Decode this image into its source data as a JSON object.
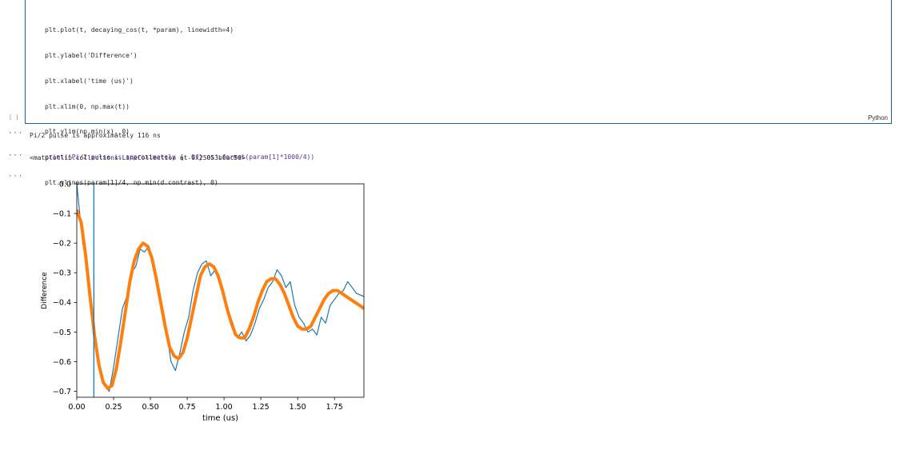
{
  "input_cell": {
    "code_lines": [
      "plt.plot(t, decaying_cos(t, *param), linewidth=4)",
      "plt.ylabel('Difference')",
      "plt.xlabel('time (us)')",
      "plt.xlim(0, np.max(t))",
      "plt.ylim(np.min(x), 0)",
      "print('Pi/2 pulse is approximately {:.0f} ns'.format(param[1]*1000/4))",
      "plt.vlines(param[1]/4, np.min(d.contrast), 0)"
    ],
    "language": "Python",
    "bracket": "[ ]"
  },
  "outputs": {
    "dots": "···",
    "stdout": "Pi/2 pulse is approximately 116 ns",
    "repr": "<matplotlib.collections.LineCollection at 0x25053b0ac50>"
  },
  "chart_data": {
    "type": "line",
    "xlabel": "time (us)",
    "ylabel": "Difference",
    "xlim": [
      0,
      1.95
    ],
    "ylim": [
      -0.72,
      0
    ],
    "xticks": [
      "0.00",
      "0.25",
      "0.50",
      "0.75",
      "1.00",
      "1.25",
      "1.50",
      "1.75"
    ],
    "yticks": [
      "0.0",
      "−0.1",
      "−0.2",
      "−0.3",
      "−0.4",
      "−0.5",
      "−0.6",
      "−0.7"
    ],
    "vline_x": 0.116,
    "series": [
      {
        "color": "#1f77b4",
        "x": [
          0.0,
          0.04,
          0.07,
          0.1,
          0.13,
          0.16,
          0.19,
          0.22,
          0.25,
          0.28,
          0.31,
          0.34,
          0.37,
          0.4,
          0.43,
          0.46,
          0.49,
          0.52,
          0.55,
          0.58,
          0.61,
          0.64,
          0.67,
          0.7,
          0.73,
          0.76,
          0.79,
          0.82,
          0.85,
          0.88,
          0.91,
          0.94,
          0.97,
          1.0,
          1.03,
          1.06,
          1.09,
          1.12,
          1.15,
          1.18,
          1.21,
          1.24,
          1.27,
          1.3,
          1.33,
          1.36,
          1.39,
          1.42,
          1.45,
          1.48,
          1.51,
          1.54,
          1.57,
          1.6,
          1.63,
          1.66,
          1.69,
          1.72,
          1.75,
          1.78,
          1.81,
          1.84,
          1.87,
          1.9,
          1.95
        ],
        "values": [
          0.0,
          -0.2,
          -0.28,
          -0.42,
          -0.55,
          -0.62,
          -0.68,
          -0.7,
          -0.62,
          -0.52,
          -0.42,
          -0.38,
          -0.3,
          -0.28,
          -0.22,
          -0.23,
          -0.21,
          -0.26,
          -0.36,
          -0.44,
          -0.5,
          -0.6,
          -0.63,
          -0.57,
          -0.5,
          -0.45,
          -0.36,
          -0.3,
          -0.27,
          -0.26,
          -0.31,
          -0.29,
          -0.34,
          -0.39,
          -0.43,
          -0.47,
          -0.52,
          -0.5,
          -0.53,
          -0.51,
          -0.47,
          -0.42,
          -0.39,
          -0.35,
          -0.33,
          -0.29,
          -0.31,
          -0.35,
          -0.33,
          -0.41,
          -0.45,
          -0.47,
          -0.5,
          -0.49,
          -0.51,
          -0.45,
          -0.47,
          -0.41,
          -0.39,
          -0.37,
          -0.36,
          -0.33,
          -0.35,
          -0.37,
          -0.38
        ]
      },
      {
        "color": "#ff7f0e",
        "x": [
          0.0,
          0.03,
          0.06,
          0.09,
          0.12,
          0.15,
          0.18,
          0.21,
          0.24,
          0.27,
          0.3,
          0.33,
          0.36,
          0.39,
          0.42,
          0.45,
          0.48,
          0.51,
          0.54,
          0.57,
          0.6,
          0.63,
          0.66,
          0.69,
          0.72,
          0.75,
          0.78,
          0.81,
          0.84,
          0.87,
          0.9,
          0.93,
          0.96,
          0.99,
          1.02,
          1.05,
          1.08,
          1.11,
          1.14,
          1.17,
          1.2,
          1.23,
          1.26,
          1.29,
          1.32,
          1.35,
          1.38,
          1.41,
          1.44,
          1.47,
          1.5,
          1.53,
          1.56,
          1.59,
          1.62,
          1.65,
          1.68,
          1.71,
          1.74,
          1.77,
          1.8,
          1.83,
          1.86,
          1.89,
          1.92,
          1.95
        ],
        "values": [
          -0.09,
          -0.13,
          -0.24,
          -0.38,
          -0.51,
          -0.61,
          -0.67,
          -0.69,
          -0.68,
          -0.62,
          -0.53,
          -0.43,
          -0.33,
          -0.26,
          -0.22,
          -0.2,
          -0.21,
          -0.25,
          -0.32,
          -0.4,
          -0.48,
          -0.55,
          -0.58,
          -0.59,
          -0.57,
          -0.52,
          -0.45,
          -0.38,
          -0.31,
          -0.28,
          -0.27,
          -0.28,
          -0.31,
          -0.36,
          -0.42,
          -0.47,
          -0.51,
          -0.52,
          -0.52,
          -0.49,
          -0.45,
          -0.4,
          -0.36,
          -0.33,
          -0.32,
          -0.32,
          -0.34,
          -0.37,
          -0.41,
          -0.45,
          -0.48,
          -0.49,
          -0.49,
          -0.48,
          -0.45,
          -0.42,
          -0.39,
          -0.37,
          -0.36,
          -0.36,
          -0.37,
          -0.38,
          -0.39,
          -0.4,
          -0.41,
          -0.42
        ]
      }
    ]
  }
}
